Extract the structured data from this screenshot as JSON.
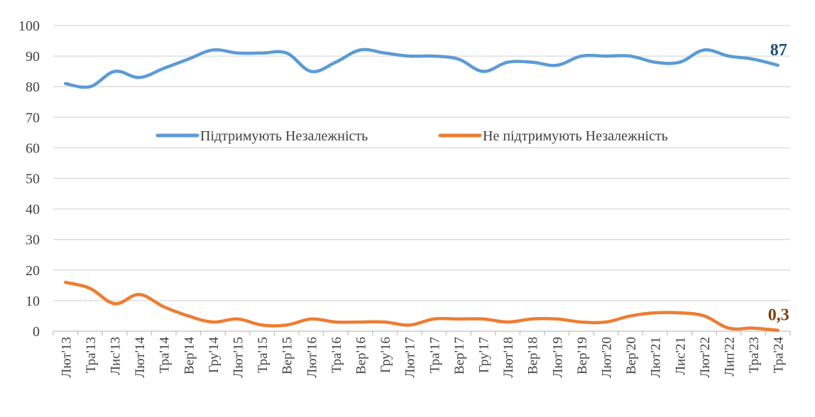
{
  "chart_data": {
    "type": "line",
    "title": "",
    "xlabel": "",
    "ylabel": "",
    "ylim": [
      0,
      100
    ],
    "yticks": [
      0,
      10,
      20,
      30,
      40,
      50,
      60,
      70,
      80,
      90,
      100
    ],
    "grid": true,
    "legend_position": "center",
    "categories": [
      "Лют'13",
      "Тра'13",
      "Лис'13",
      "Лют'14",
      "Тра'14",
      "Вер'14",
      "Гру'14",
      "Лют'15",
      "Тра'15",
      "Вер'15",
      "Лют'16",
      "Тра'16",
      "Вер'16",
      "Гру'16",
      "Лют'17",
      "Тра'17",
      "Вер'17",
      "Гру'17",
      "Лют'18",
      "Вер'18",
      "Лют'19",
      "Вер'19",
      "Лют'20",
      "Вер'20",
      "Лют'21",
      "Лис'21",
      "Лют'22",
      "Лип'22",
      "Тра'23",
      "Тра'24"
    ],
    "series": [
      {
        "name": "Підтримують Незалежність",
        "color": "#5B9BD5",
        "values": [
          81,
          80,
          85,
          83,
          86,
          89,
          92,
          91,
          91,
          91,
          85,
          88,
          92,
          91,
          90,
          90,
          89,
          85,
          88,
          88,
          87,
          90,
          90,
          90,
          88,
          88,
          92,
          90,
          89,
          87
        ],
        "end_label": "87",
        "end_label_color": "#1F4E79"
      },
      {
        "name": "Не підтримують Незалежність",
        "color": "#ED7D31",
        "values": [
          16,
          14,
          9,
          12,
          8,
          5,
          3,
          4,
          2,
          2,
          4,
          3,
          3,
          3,
          2,
          4,
          4,
          4,
          3,
          4,
          4,
          3,
          3,
          5,
          6,
          6,
          5,
          1,
          1,
          0.3
        ],
        "end_label": "0,3",
        "end_label_color": "#843C0C"
      }
    ]
  }
}
